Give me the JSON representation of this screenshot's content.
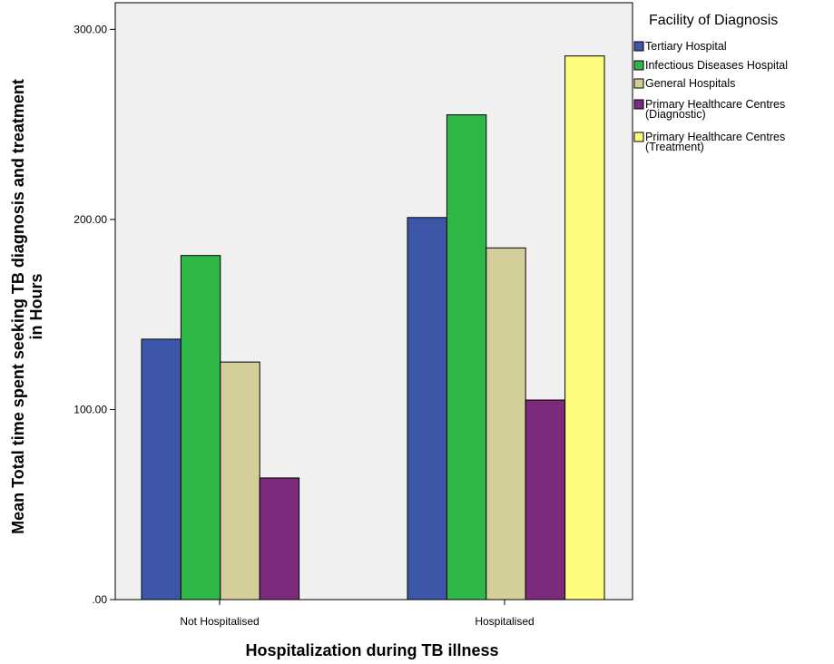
{
  "chart_data": {
    "type": "bar",
    "title": "",
    "xlabel": "Hospitalization during TB illness",
    "ylabel": "Mean Total time spent seeking TB diagnosis and treatment in Hours",
    "ylabel_lines": [
      "Mean Total time spent seeking TB diagnosis and treatment",
      "in Hours"
    ],
    "categories": [
      "Not Hospitalised",
      "Hospitalised"
    ],
    "yticks": [
      ".00",
      "100.00",
      "200.00",
      "300.00"
    ],
    "ylim": [
      0,
      314
    ],
    "grid": false,
    "legend": {
      "title": "Facility of Diagnosis",
      "placement": "right"
    },
    "series": [
      {
        "name": "Tertiary Hospital",
        "label_lines": [
          "Tertiary Hospital"
        ],
        "color": "#3d57a8",
        "values": [
          137,
          201
        ]
      },
      {
        "name": "Infectious Diseases Hospital",
        "label_lines": [
          "Infectious Diseases Hospital"
        ],
        "color": "#2eb848",
        "values": [
          181,
          255
        ]
      },
      {
        "name": "General Hospitals",
        "label_lines": [
          "General Hospitals"
        ],
        "color": "#d4cf9a",
        "values": [
          125,
          185
        ]
      },
      {
        "name": "Primary Healthcare Centres (Diagnostic)",
        "label_lines": [
          "Primary Healthcare Centres",
          "(Diagnostic)"
        ],
        "color": "#7c2a7c",
        "values": [
          64,
          105
        ]
      },
      {
        "name": "Primary Healthcare Centres (Treatment)",
        "label_lines": [
          "Primary Healthcare Centres",
          "(Treatment)"
        ],
        "color": "#fdfb7e",
        "values": [
          null,
          286
        ]
      }
    ],
    "plot_background": "#f0f0f0"
  }
}
